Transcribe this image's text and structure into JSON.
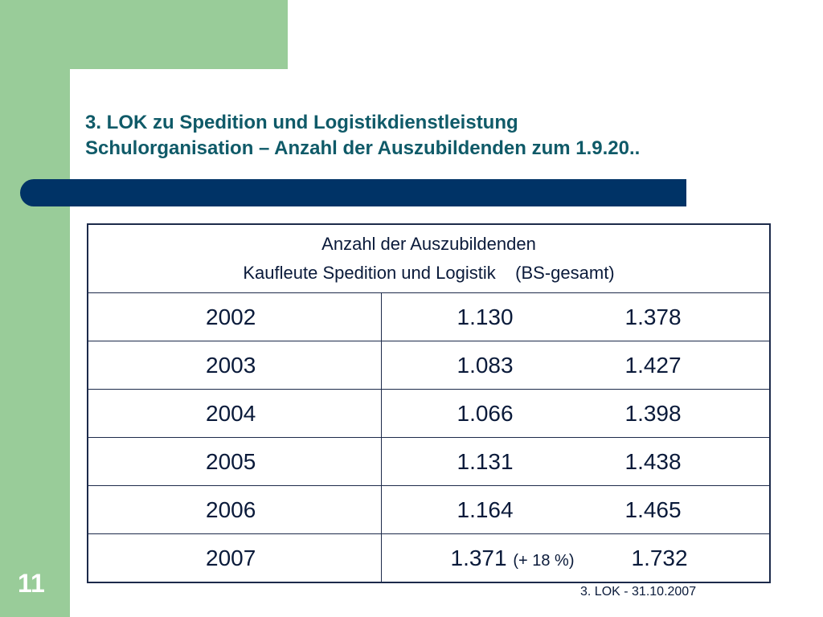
{
  "slide": {
    "title_line1": "3. LOK zu Spedition und Logistikdienstleistung",
    "title_line2": "Schulorganisation – Anzahl der Auszubildenden zum 1.9.20..",
    "page_number": "11",
    "footer": "3. LOK - 31.10.2007"
  },
  "table": {
    "header_line1": "Anzahl der Auszubildenden",
    "header_line2": "Kaufleute Spedition und Logistik    (BS-gesamt)",
    "rows": [
      {
        "year": "2002",
        "kaufleute": "1.130",
        "change": "",
        "bs_gesamt": "1.378"
      },
      {
        "year": "2003",
        "kaufleute": "1.083",
        "change": "",
        "bs_gesamt": "1.427"
      },
      {
        "year": "2004",
        "kaufleute": "1.066",
        "change": "",
        "bs_gesamt": "1.398"
      },
      {
        "year": "2005",
        "kaufleute": "1.131",
        "change": "",
        "bs_gesamt": "1.438"
      },
      {
        "year": "2006",
        "kaufleute": "1.164",
        "change": "",
        "bs_gesamt": "1.465"
      },
      {
        "year": "2007",
        "kaufleute": "1.371",
        "change": "(+ 18 %)",
        "bs_gesamt": "1.732"
      }
    ]
  },
  "colors": {
    "title": "#0f5a68",
    "accent_green": "#99cc99",
    "bar": "#003366"
  }
}
